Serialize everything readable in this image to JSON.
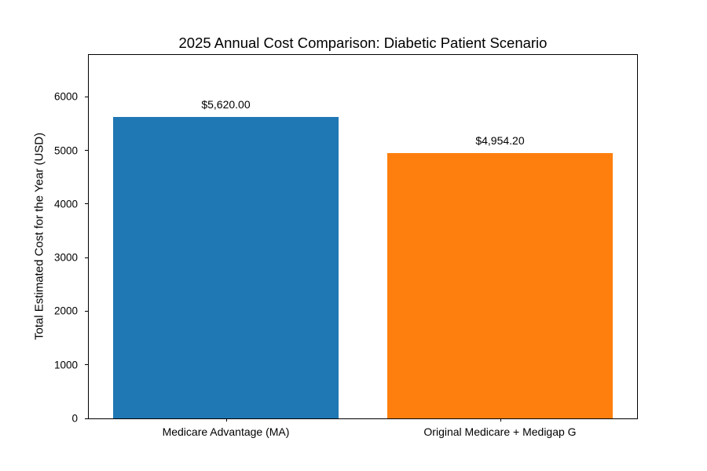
{
  "chart_data": {
    "type": "bar",
    "title": "2025 Annual Cost Comparison: Diabetic Patient Scenario",
    "ylabel": "Total Estimated Cost for the Year (USD)",
    "xlabel": "",
    "categories": [
      "Medicare Advantage (MA)",
      "Original Medicare + Medigap G"
    ],
    "values": [
      5620.0,
      4954.2
    ],
    "bar_labels": [
      "$5,620.00",
      "$4,954.20"
    ],
    "bar_colors": [
      "#1f77b4",
      "#ff7f0e"
    ],
    "yticks": [
      0,
      1000,
      2000,
      3000,
      4000,
      5000,
      6000
    ],
    "ylim": [
      0,
      6780
    ],
    "grid": false,
    "legend": null,
    "spine_color": "#000000",
    "background_color": "#ffffff",
    "text_color": "#000000"
  }
}
